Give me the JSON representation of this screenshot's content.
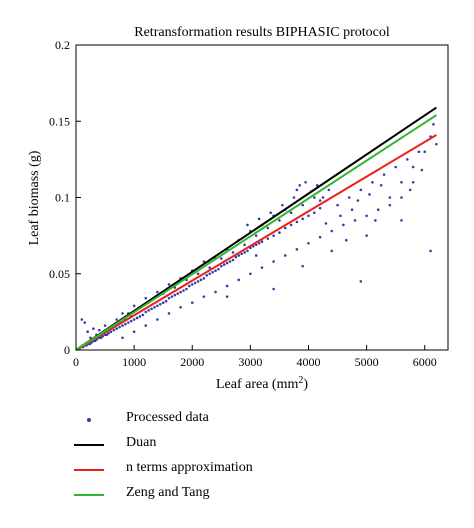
{
  "chart_data": {
    "type": "scatter",
    "title": "Retransformation results BIPHASIC protocol",
    "xlabel": "Leaf area (mm",
    "xlabel_sup": "2",
    "xlabel_close": ")",
    "ylabel": "Leaf biomass (g)",
    "xlim": [
      0,
      6400
    ],
    "ylim": [
      0,
      0.2
    ],
    "xticks": [
      0,
      1000,
      2000,
      3000,
      4000,
      5000,
      6000
    ],
    "xtick_labels": [
      "0",
      "1000",
      "2000",
      "3000",
      "4000",
      "5000",
      "6000"
    ],
    "yticks": [
      0,
      0.05,
      0.1,
      0.15,
      0.2
    ],
    "ytick_labels": [
      "0",
      "0.05",
      "0.1",
      "0.15",
      "0.2"
    ],
    "grid": false,
    "legend_position": "below",
    "scatter_series": {
      "name": "Processed data",
      "color": "#3a3aa8",
      "points": [
        [
          60,
          0.001
        ],
        [
          90,
          0.002
        ],
        [
          120,
          0.002
        ],
        [
          150,
          0.003
        ],
        [
          180,
          0.003
        ],
        [
          210,
          0.004
        ],
        [
          240,
          0.004
        ],
        [
          270,
          0.005
        ],
        [
          300,
          0.006
        ],
        [
          330,
          0.006
        ],
        [
          360,
          0.007
        ],
        [
          400,
          0.008
        ],
        [
          430,
          0.008
        ],
        [
          460,
          0.009
        ],
        [
          500,
          0.01
        ],
        [
          530,
          0.01
        ],
        [
          560,
          0.011
        ],
        [
          600,
          0.012
        ],
        [
          650,
          0.013
        ],
        [
          700,
          0.014
        ],
        [
          750,
          0.015
        ],
        [
          800,
          0.016
        ],
        [
          850,
          0.017
        ],
        [
          900,
          0.018
        ],
        [
          950,
          0.019
        ],
        [
          1000,
          0.02
        ],
        [
          1050,
          0.021
        ],
        [
          1100,
          0.022
        ],
        [
          1150,
          0.023
        ],
        [
          1200,
          0.025
        ],
        [
          1250,
          0.026
        ],
        [
          1300,
          0.027
        ],
        [
          1350,
          0.028
        ],
        [
          1400,
          0.029
        ],
        [
          1450,
          0.03
        ],
        [
          1500,
          0.031
        ],
        [
          1550,
          0.032
        ],
        [
          1600,
          0.034
        ],
        [
          1650,
          0.035
        ],
        [
          1700,
          0.036
        ],
        [
          1750,
          0.037
        ],
        [
          1800,
          0.038
        ],
        [
          1850,
          0.039
        ],
        [
          1900,
          0.04
        ],
        [
          1950,
          0.042
        ],
        [
          2000,
          0.043
        ],
        [
          2050,
          0.044
        ],
        [
          2100,
          0.045
        ],
        [
          2150,
          0.046
        ],
        [
          2200,
          0.047
        ],
        [
          2250,
          0.049
        ],
        [
          2300,
          0.05
        ],
        [
          2350,
          0.051
        ],
        [
          2400,
          0.052
        ],
        [
          2450,
          0.053
        ],
        [
          2500,
          0.055
        ],
        [
          2550,
          0.056
        ],
        [
          2600,
          0.057
        ],
        [
          2650,
          0.058
        ],
        [
          2700,
          0.059
        ],
        [
          2750,
          0.061
        ],
        [
          2800,
          0.062
        ],
        [
          2850,
          0.063
        ],
        [
          2900,
          0.064
        ],
        [
          2950,
          0.065
        ],
        [
          3000,
          0.067
        ],
        [
          3050,
          0.068
        ],
        [
          3100,
          0.069
        ],
        [
          3150,
          0.07
        ],
        [
          3200,
          0.071
        ],
        [
          3300,
          0.073
        ],
        [
          3400,
          0.075
        ],
        [
          3500,
          0.077
        ],
        [
          3600,
          0.08
        ],
        [
          3700,
          0.082
        ],
        [
          3800,
          0.084
        ],
        [
          3900,
          0.086
        ],
        [
          4000,
          0.088
        ],
        [
          4100,
          0.09
        ],
        [
          4200,
          0.093
        ],
        [
          200,
          0.012
        ],
        [
          300,
          0.014
        ],
        [
          400,
          0.013
        ],
        [
          500,
          0.016
        ],
        [
          700,
          0.02
        ],
        [
          900,
          0.024
        ],
        [
          1100,
          0.028
        ],
        [
          1300,
          0.033
        ],
        [
          1500,
          0.037
        ],
        [
          1700,
          0.041
        ],
        [
          1900,
          0.046
        ],
        [
          2100,
          0.05
        ],
        [
          2300,
          0.054
        ],
        [
          2500,
          0.06
        ],
        [
          2700,
          0.064
        ],
        [
          2900,
          0.069
        ],
        [
          3100,
          0.075
        ],
        [
          3300,
          0.08
        ],
        [
          3500,
          0.085
        ],
        [
          3700,
          0.09
        ],
        [
          3900,
          0.095
        ],
        [
          4100,
          0.1
        ],
        [
          3950,
          0.11
        ],
        [
          3800,
          0.105
        ],
        [
          4200,
          0.098
        ],
        [
          3400,
          0.088
        ],
        [
          3600,
          0.092
        ],
        [
          3200,
          0.082
        ],
        [
          3000,
          0.078
        ],
        [
          2800,
          0.072
        ],
        [
          800,
          0.008
        ],
        [
          1000,
          0.012
        ],
        [
          1200,
          0.016
        ],
        [
          1400,
          0.02
        ],
        [
          1600,
          0.024
        ],
        [
          1800,
          0.028
        ],
        [
          2000,
          0.031
        ],
        [
          2200,
          0.035
        ],
        [
          2400,
          0.038
        ],
        [
          2600,
          0.042
        ],
        [
          2800,
          0.046
        ],
        [
          3000,
          0.05
        ],
        [
          3200,
          0.054
        ],
        [
          3400,
          0.058
        ],
        [
          3600,
          0.062
        ],
        [
          3800,
          0.066
        ],
        [
          4000,
          0.07
        ],
        [
          4200,
          0.074
        ],
        [
          4400,
          0.078
        ],
        [
          4600,
          0.082
        ],
        [
          4800,
          0.085
        ],
        [
          5000,
          0.088
        ],
        [
          4500,
          0.095
        ],
        [
          4700,
          0.1
        ],
        [
          4900,
          0.105
        ],
        [
          5100,
          0.11
        ],
        [
          5300,
          0.115
        ],
        [
          5500,
          0.12
        ],
        [
          5700,
          0.125
        ],
        [
          5900,
          0.13
        ],
        [
          5200,
          0.092
        ],
        [
          5400,
          0.1
        ],
        [
          5600,
          0.11
        ],
        [
          5800,
          0.12
        ],
        [
          6000,
          0.13
        ],
        [
          6100,
          0.14
        ],
        [
          6150,
          0.148
        ],
        [
          6200,
          0.135
        ],
        [
          5950,
          0.118
        ],
        [
          5750,
          0.105
        ],
        [
          6100,
          0.065
        ],
        [
          4900,
          0.045
        ],
        [
          3400,
          0.04
        ],
        [
          5000,
          0.075
        ],
        [
          5600,
          0.085
        ],
        [
          4400,
          0.065
        ],
        [
          3900,
          0.055
        ],
        [
          3100,
          0.062
        ],
        [
          2600,
          0.035
        ],
        [
          4300,
          0.083
        ],
        [
          2400,
          0.06
        ],
        [
          2600,
          0.066
        ],
        [
          2200,
          0.058
        ],
        [
          2000,
          0.052
        ],
        [
          1800,
          0.047
        ],
        [
          1600,
          0.043
        ],
        [
          1400,
          0.038
        ],
        [
          1200,
          0.034
        ],
        [
          1000,
          0.029
        ],
        [
          800,
          0.024
        ],
        [
          2950,
          0.082
        ],
        [
          3150,
          0.086
        ],
        [
          3350,
          0.09
        ],
        [
          3550,
          0.095
        ],
        [
          3750,
          0.1
        ],
        [
          3850,
          0.108
        ],
        [
          4050,
          0.104
        ],
        [
          4150,
          0.108
        ],
        [
          4250,
          0.1
        ],
        [
          4350,
          0.105
        ],
        [
          5400,
          0.095
        ],
        [
          5600,
          0.1
        ],
        [
          5800,
          0.11
        ],
        [
          5150,
          0.085
        ],
        [
          4650,
          0.072
        ],
        [
          4550,
          0.088
        ],
        [
          4750,
          0.092
        ],
        [
          4850,
          0.098
        ],
        [
          5050,
          0.102
        ],
        [
          5250,
          0.108
        ],
        [
          100,
          0.02
        ],
        [
          150,
          0.018
        ],
        [
          250,
          0.008
        ],
        [
          350,
          0.01
        ],
        [
          450,
          0.011
        ],
        [
          550,
          0.013
        ],
        [
          650,
          0.015
        ],
        [
          750,
          0.018
        ],
        [
          850,
          0.02
        ],
        [
          950,
          0.022
        ]
      ]
    },
    "series": [
      {
        "name": "Duan",
        "color": "#000000",
        "x": [
          0,
          6200
        ],
        "y": [
          0,
          0.159
        ]
      },
      {
        "name": "n terms approximation",
        "color": "#e8221b",
        "x": [
          0,
          6200
        ],
        "y": [
          0,
          0.141
        ]
      },
      {
        "name": "Zeng and Tang",
        "color": "#2fb82f",
        "x": [
          0,
          6200
        ],
        "y": [
          0,
          0.154
        ]
      }
    ]
  },
  "legend": {
    "items": [
      {
        "label": "Processed data",
        "kind": "dot",
        "color": "#3a3aa8"
      },
      {
        "label": "Duan",
        "kind": "line",
        "color": "#000000"
      },
      {
        "label": "n terms approximation",
        "kind": "line",
        "color": "#e8221b"
      },
      {
        "label": "Zeng and Tang",
        "kind": "line",
        "color": "#2fb82f"
      }
    ]
  }
}
